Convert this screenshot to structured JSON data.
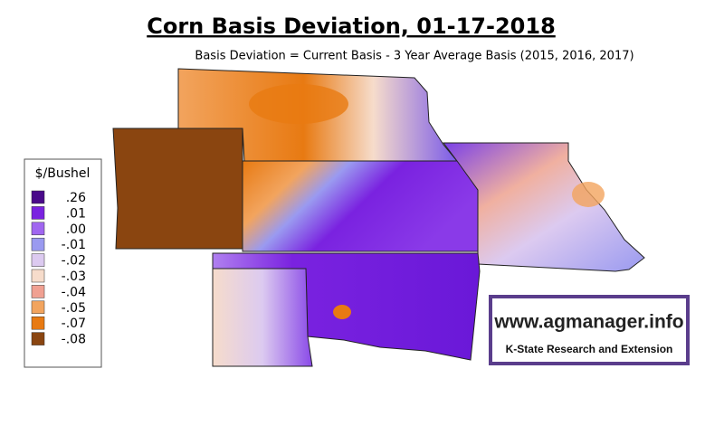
{
  "header": {
    "title": "Corn Basis Deviation, 01-17-2018",
    "subtitle": "Basis Deviation = Current Basis - 3 Year Average Basis (2015, 2016, 2017)"
  },
  "legend": {
    "title": "$/Bushel",
    "entries": [
      {
        "label": ".26",
        "color": "#4a0a8a"
      },
      {
        "label": ".01",
        "color": "#7a22e0"
      },
      {
        "label": ".00",
        "color": "#a066f0"
      },
      {
        "label": "-.01",
        "color": "#9a9af0"
      },
      {
        "label": "-.02",
        "color": "#dccaf0"
      },
      {
        "label": "-.03",
        "color": "#f6dccb"
      },
      {
        "label": "-.04",
        "color": "#f0a092"
      },
      {
        "label": "-.05",
        "color": "#f2a45e"
      },
      {
        "label": "-.07",
        "color": "#e87a12"
      },
      {
        "label": "-.08",
        "color": "#8a4510"
      }
    ]
  },
  "logo": {
    "url": "www.agmanager.info",
    "org": "K-State Research and Extension"
  }
}
